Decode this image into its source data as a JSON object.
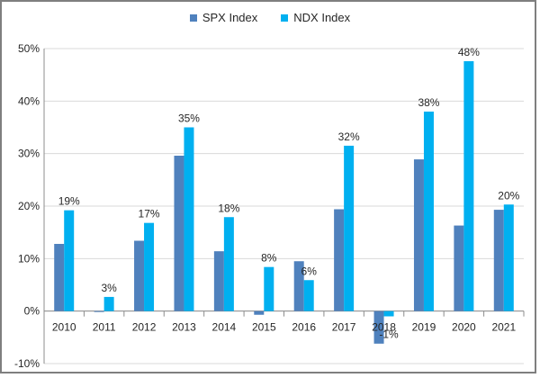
{
  "chart_data": {
    "type": "bar",
    "categories": [
      "2010",
      "2011",
      "2012",
      "2013",
      "2014",
      "2015",
      "2016",
      "2017",
      "2018",
      "2019",
      "2020",
      "2021"
    ],
    "series": [
      {
        "name": "SPX Index",
        "color": "#4f81bd",
        "values": [
          12.8,
          -0.1,
          13.4,
          29.6,
          11.4,
          -0.7,
          9.5,
          19.4,
          -6.2,
          28.9,
          16.3,
          19.3
        ]
      },
      {
        "name": "NDX Index",
        "color": "#00b0f0",
        "values": [
          19.2,
          2.7,
          16.8,
          35.0,
          17.9,
          8.4,
          5.9,
          31.5,
          -1.0,
          38.0,
          47.6,
          20.3
        ]
      }
    ],
    "data_labels": [
      "19%",
      "3%",
      "17%",
      "35%",
      "18%",
      "8%",
      "6%",
      "32%",
      "-1%",
      "38%",
      "48%",
      "20%"
    ],
    "y_ticks": [
      "-10%",
      "0%",
      "10%",
      "20%",
      "30%",
      "40%",
      "50%"
    ],
    "ylim": [
      -10,
      50
    ],
    "grid": true,
    "legend_position": "top-center"
  }
}
